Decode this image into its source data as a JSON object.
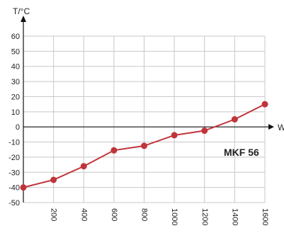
{
  "chart_data": {
    "type": "line",
    "ylabel": "T/°C",
    "xlabel": "W",
    "annotation": "MKF 56",
    "x_ticks": [
      200,
      400,
      600,
      800,
      1000,
      1200,
      1400,
      1600
    ],
    "y_ticks": [
      60,
      50,
      40,
      30,
      20,
      10,
      0,
      -10,
      -20,
      -30,
      -40,
      -50
    ],
    "xlim": [
      0,
      1600
    ],
    "ylim": [
      -50,
      60
    ],
    "grid": true,
    "series": [
      {
        "x": [
          0,
          200,
          400,
          600,
          800,
          1000,
          1200,
          1400,
          1600
        ],
        "y": [
          -40,
          -35,
          -26,
          -15.5,
          -12.5,
          -5.5,
          -2.5,
          5,
          15
        ],
        "color": "#c0343a"
      }
    ]
  }
}
